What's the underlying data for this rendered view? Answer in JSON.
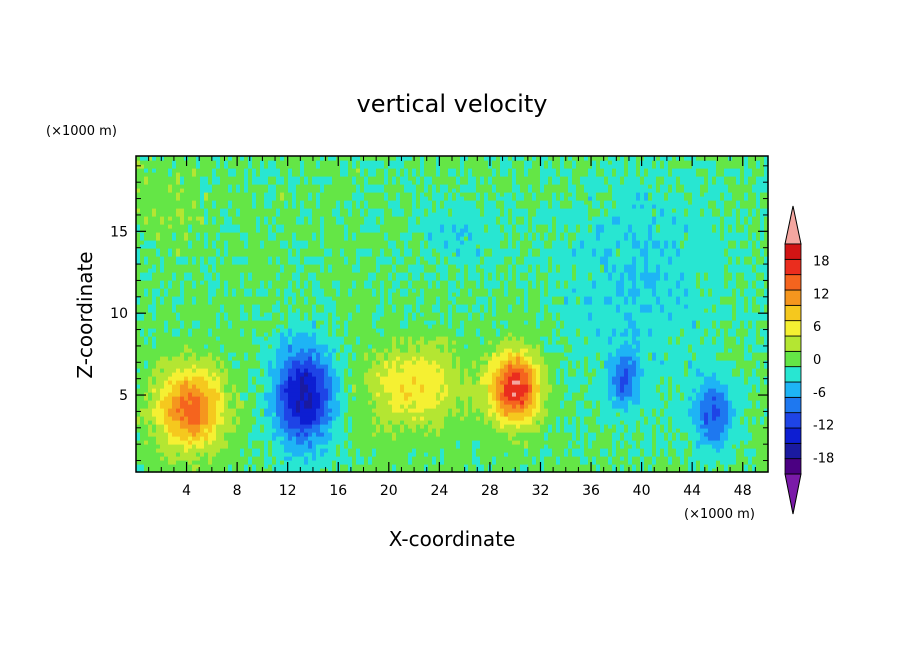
{
  "chart_data": {
    "type": "heatmap",
    "title": "vertical velocity",
    "xlabel": "X-coordinate",
    "ylabel": "Z-coordinate",
    "x_unit": "(×1000 m)",
    "y_unit": "(×1000 m)",
    "xlim": [
      0,
      50
    ],
    "ylim": [
      0.3,
      19.6
    ],
    "x_ticks": [
      4,
      8,
      12,
      16,
      20,
      24,
      28,
      32,
      36,
      40,
      44,
      48
    ],
    "x_tick_labels": [
      "4",
      "8",
      "12",
      "16",
      "20",
      "24",
      "28",
      "32",
      "36",
      "40",
      "44",
      "48"
    ],
    "y_ticks": [
      5,
      10,
      15
    ],
    "y_tick_labels": [
      "5",
      "10",
      "15"
    ],
    "grid": false,
    "colorbar": {
      "levels": [
        -21,
        -18,
        -15,
        -12,
        -9,
        -6,
        -3,
        0,
        3,
        6,
        9,
        12,
        15,
        18,
        21
      ],
      "tick_values": [
        -18,
        -12,
        -6,
        0,
        6,
        12,
        18
      ],
      "tick_labels": [
        "-18",
        "-12",
        "-6",
        "0",
        "6",
        "12",
        "18"
      ],
      "colors": [
        "#4b0082",
        "#1a1aa0",
        "#0d1ed2",
        "#1e44e6",
        "#1e78f0",
        "#1eb4f5",
        "#28e6d2",
        "#64e646",
        "#b4e632",
        "#f5f032",
        "#f5c81e",
        "#f5961e",
        "#f5641e",
        "#ea2d1e",
        "#d21414"
      ],
      "under_color": "#7a1aa8",
      "over_color": "#f4a6a0"
    },
    "features": [
      {
        "x": 4.3,
        "z": 4.2,
        "sx": 2.6,
        "sz": 2.4,
        "w": 16
      },
      {
        "x": 13.3,
        "z": 5.0,
        "sx": 2.3,
        "sz": 3.0,
        "w": -17
      },
      {
        "x": 22.0,
        "z": 5.5,
        "sx": 3.8,
        "sz": 2.4,
        "w": 8
      },
      {
        "x": 30.0,
        "z": 5.5,
        "sx": 1.9,
        "sz": 2.1,
        "w": 21
      },
      {
        "x": 38.7,
        "z": 6.0,
        "sx": 1.2,
        "sz": 1.6,
        "w": -9
      },
      {
        "x": 45.7,
        "z": 3.8,
        "sx": 1.6,
        "sz": 2.0,
        "w": -10
      }
    ]
  }
}
